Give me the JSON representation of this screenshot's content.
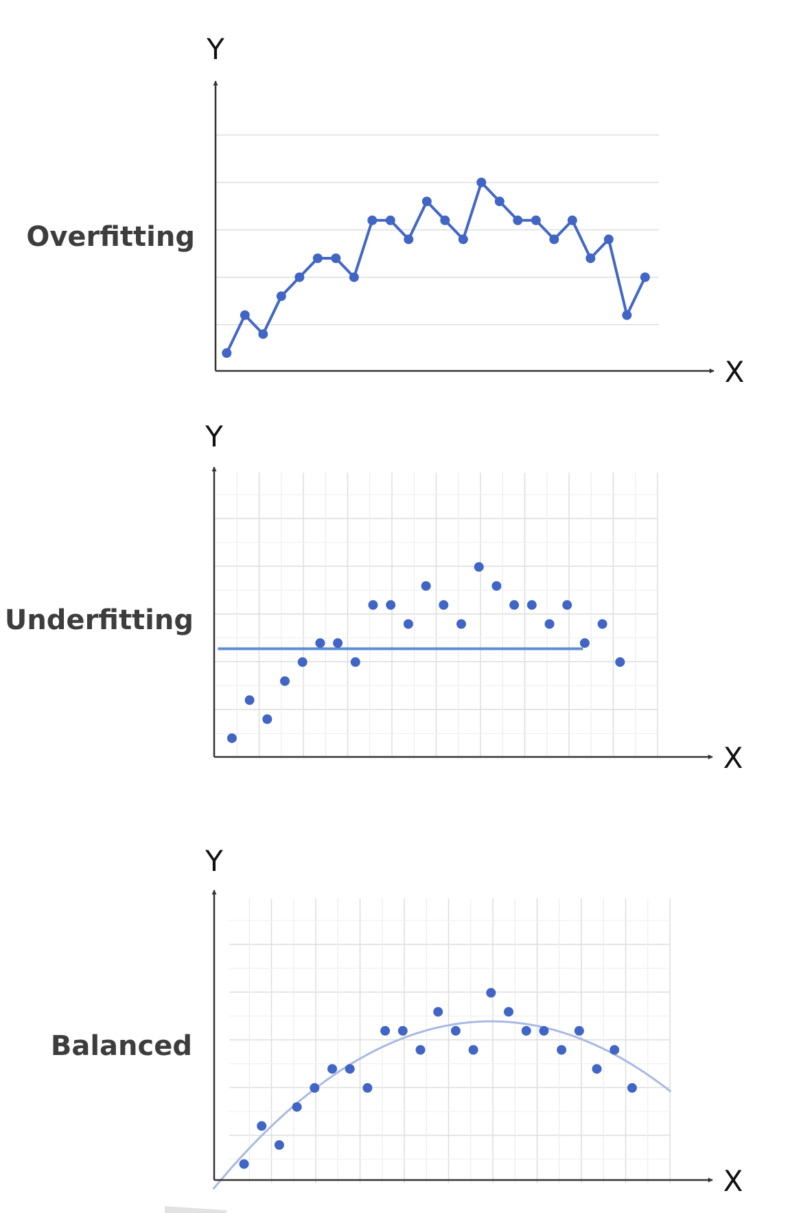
{
  "palette": {
    "point": "#4065c4",
    "overfit_line": "#4367c5",
    "flat_line": "#5b8fd0",
    "curve": "#a9b9e4",
    "grid": "#dddddd",
    "axis": "#333333"
  },
  "chart_data": [
    {
      "type": "line",
      "label": "Overfitting",
      "xaxis_label": "X",
      "yaxis_label": "Y",
      "grid": "horizontal",
      "x": [
        1,
        2,
        3,
        4,
        5,
        6,
        7,
        8,
        9,
        10,
        11,
        12,
        13,
        14,
        15,
        16,
        17,
        18,
        19,
        20,
        21,
        22,
        23,
        24
      ],
      "y": [
        1.0,
        3.0,
        2.0,
        4.0,
        5.0,
        6.0,
        6.0,
        5.0,
        8.0,
        8.0,
        7.0,
        9.0,
        8.0,
        7.0,
        10.0,
        9.0,
        8.0,
        8.0,
        7.0,
        8.0,
        6.0,
        7.0,
        3.0,
        5.0
      ]
    },
    {
      "type": "scatter",
      "label": "Underfitting",
      "xaxis_label": "X",
      "yaxis_label": "Y",
      "grid": "both",
      "x": [
        1,
        2,
        3,
        4,
        5,
        6,
        7,
        8,
        9,
        10,
        11,
        12,
        13,
        14,
        15,
        16,
        17,
        18,
        19,
        20,
        21,
        22,
        23
      ],
      "y": [
        1.0,
        3.0,
        2.0,
        4.0,
        5.0,
        6.0,
        6.0,
        5.0,
        8.0,
        8.0,
        7.0,
        9.0,
        8.0,
        7.0,
        10.0,
        9.0,
        8.0,
        8.0,
        7.0,
        8.0,
        6.0,
        7.0,
        5.0
      ],
      "fit": {
        "type": "constant",
        "value": 5.7
      }
    },
    {
      "type": "scatter",
      "label": "Balanced",
      "xaxis_label": "X",
      "yaxis_label": "Y",
      "grid": "both",
      "x": [
        1,
        2,
        3,
        4,
        5,
        6,
        7,
        8,
        9,
        10,
        11,
        12,
        13,
        14,
        15,
        16,
        17,
        18,
        19,
        20,
        21,
        22,
        23
      ],
      "y": [
        1.0,
        3.0,
        2.0,
        4.0,
        5.0,
        6.0,
        6.0,
        5.0,
        8.0,
        8.0,
        7.0,
        9.0,
        8.0,
        7.0,
        10.0,
        9.0,
        8.0,
        8.0,
        7.0,
        8.0,
        6.0,
        7.0,
        5.0
      ],
      "fit": {
        "type": "quadratic",
        "peak_x": 15,
        "peak_y": 8.5
      }
    }
  ]
}
